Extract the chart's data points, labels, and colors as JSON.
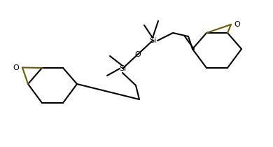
{
  "background_color": "#ffffff",
  "line_color": "#000000",
  "epoxide_line_color": "#6b5a00",
  "label_Si": "Si",
  "label_O": "O",
  "figsize": [
    3.9,
    2.1
  ],
  "dpi": 100
}
